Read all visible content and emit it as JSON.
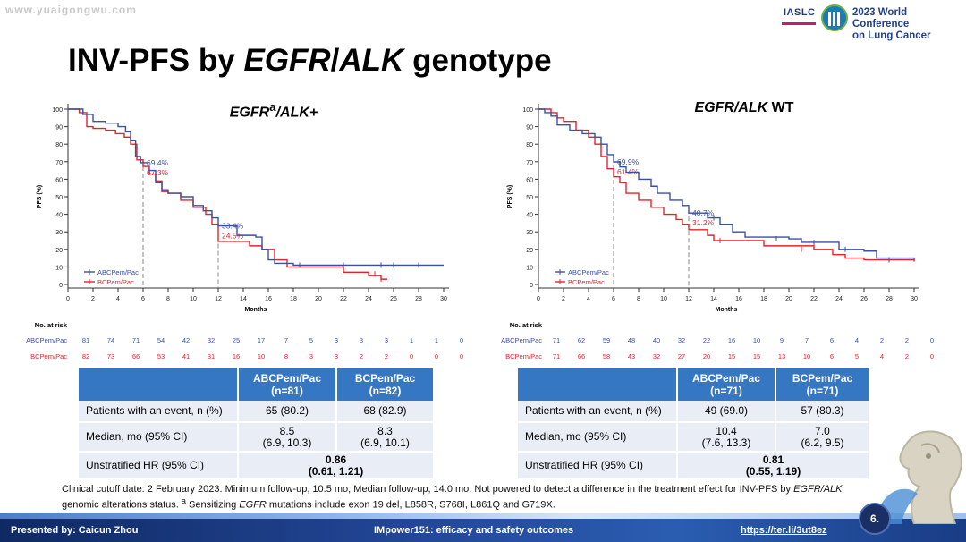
{
  "watermark": "www.yuaigongwu.com",
  "conference": {
    "org": "IASLC",
    "line1": "2023 World Conference",
    "line2": "on Lung Cancer"
  },
  "title": {
    "pre": "INV-PFS by ",
    "it1": "EGFR",
    "slash": "/",
    "it2": "ALK",
    "post": " genotype"
  },
  "colors": {
    "abc": "#3a4fa6",
    "bc": "#e0242c",
    "table_header": "#3677c4",
    "table_row": "#e9edf5"
  },
  "risk_header": "No. at risk",
  "chart_data": [
    {
      "type": "line",
      "subtitle_html": "<i>EGFR</i><sup>a</sup><i>/ALK+</i>",
      "xlabel": "Months",
      "ylabel": "PFS (%)",
      "xlim": [
        0,
        30
      ],
      "ylim": [
        0,
        100
      ],
      "xticks": [
        0,
        2,
        4,
        6,
        8,
        10,
        12,
        14,
        16,
        18,
        20,
        22,
        24,
        26,
        28,
        30
      ],
      "yticks": [
        0,
        10,
        20,
        30,
        40,
        50,
        60,
        70,
        80,
        90,
        100
      ],
      "legend": "bottom-left",
      "series": [
        {
          "name": "ABCPem/Pac",
          "color": "#3a4fa6",
          "points": [
            [
              0,
              100
            ],
            [
              0.8,
              100
            ],
            [
              1.2,
              97
            ],
            [
              2,
              93
            ],
            [
              3,
              92
            ],
            [
              4,
              90
            ],
            [
              4.6,
              87
            ],
            [
              5,
              82
            ],
            [
              5.4,
              73
            ],
            [
              5.8,
              69.4
            ],
            [
              6,
              69.4
            ],
            [
              6.4,
              65
            ],
            [
              7,
              58
            ],
            [
              7.5,
              54
            ],
            [
              8,
              52
            ],
            [
              9,
              50
            ],
            [
              10,
              45
            ],
            [
              10.8,
              42
            ],
            [
              11.5,
              38
            ],
            [
              12,
              33.4
            ],
            [
              13,
              33.4
            ],
            [
              13.5,
              28
            ],
            [
              15,
              27
            ],
            [
              15.5,
              20
            ],
            [
              16,
              14
            ],
            [
              16.5,
              12
            ],
            [
              18,
              11
            ],
            [
              30,
              11
            ]
          ],
          "censor": [
            [
              18.5,
              11
            ],
            [
              22,
              11
            ],
            [
              25,
              11
            ],
            [
              26,
              11
            ],
            [
              28,
              11
            ]
          ]
        },
        {
          "name": "BCPem/Pac",
          "color": "#e0242c",
          "points": [
            [
              0,
              100
            ],
            [
              0.9,
              98
            ],
            [
              1.5,
              90
            ],
            [
              2,
              89
            ],
            [
              3,
              88
            ],
            [
              3.8,
              86
            ],
            [
              4.5,
              84
            ],
            [
              5,
              80
            ],
            [
              5.5,
              71
            ],
            [
              6,
              67.3
            ],
            [
              6.5,
              63
            ],
            [
              7,
              59
            ],
            [
              7.5,
              53
            ],
            [
              8,
              52
            ],
            [
              9,
              48
            ],
            [
              10,
              44
            ],
            [
              11,
              40
            ],
            [
              11.5,
              34
            ],
            [
              12,
              24.5
            ],
            [
              14,
              24.5
            ],
            [
              14.5,
              22
            ],
            [
              15.5,
              20
            ],
            [
              16.5,
              14
            ],
            [
              17.5,
              10
            ],
            [
              20,
              10
            ],
            [
              22,
              7
            ],
            [
              24,
              5
            ],
            [
              25,
              3
            ],
            [
              25.5,
              3
            ]
          ],
          "censor": [
            [
              24.5,
              6
            ],
            [
              25,
              3
            ]
          ]
        }
      ],
      "annotations": [
        {
          "x": 6,
          "abc": "69.4%",
          "bc": "67.3%"
        },
        {
          "x": 12,
          "abc": "33.4%",
          "bc": "24.5%"
        }
      ],
      "risk": {
        "ABCPem/Pac": [
          81,
          74,
          71,
          54,
          42,
          32,
          25,
          17,
          7,
          5,
          3,
          3,
          3,
          1,
          1,
          0
        ],
        "BCPem/Pac": [
          82,
          73,
          66,
          53,
          41,
          31,
          16,
          10,
          8,
          3,
          3,
          2,
          2,
          0,
          0,
          0
        ]
      }
    },
    {
      "type": "line",
      "subtitle_html": "<i>EGFR/ALK</i> WT",
      "xlabel": "Months",
      "ylabel": "PFS (%)",
      "xlim": [
        0,
        30
      ],
      "ylim": [
        0,
        100
      ],
      "xticks": [
        0,
        2,
        4,
        6,
        8,
        10,
        12,
        14,
        16,
        18,
        20,
        22,
        24,
        26,
        28,
        30
      ],
      "yticks": [
        0,
        10,
        20,
        30,
        40,
        50,
        60,
        70,
        80,
        90,
        100
      ],
      "legend": "bottom-left",
      "series": [
        {
          "name": "ABCPem/Pac",
          "color": "#3a4fa6",
          "points": [
            [
              0,
              100
            ],
            [
              0.5,
              98
            ],
            [
              1,
              96
            ],
            [
              1.5,
              91
            ],
            [
              2.5,
              88
            ],
            [
              3.5,
              86
            ],
            [
              4.5,
              84
            ],
            [
              5,
              80
            ],
            [
              5.5,
              74
            ],
            [
              6,
              69.9
            ],
            [
              6.5,
              67
            ],
            [
              7,
              64
            ],
            [
              8,
              60
            ],
            [
              9,
              56
            ],
            [
              9.5,
              52
            ],
            [
              10.5,
              48
            ],
            [
              11.5,
              45
            ],
            [
              12,
              40.7
            ],
            [
              13,
              40.7
            ],
            [
              13.5,
              38
            ],
            [
              14.5,
              34
            ],
            [
              15.5,
              30
            ],
            [
              16.5,
              27
            ],
            [
              20,
              26
            ],
            [
              21,
              24
            ],
            [
              23.5,
              24
            ],
            [
              24,
              20
            ],
            [
              26,
              19
            ],
            [
              27,
              15
            ],
            [
              30,
              14
            ]
          ],
          "censor": [
            [
              14,
              38
            ],
            [
              19,
              26
            ],
            [
              22,
              24
            ],
            [
              24.5,
              20
            ],
            [
              28,
              14
            ]
          ]
        },
        {
          "name": "BCPem/Pac",
          "color": "#e0242c",
          "points": [
            [
              0,
              100
            ],
            [
              1,
              98
            ],
            [
              1.5,
              95
            ],
            [
              2,
              93
            ],
            [
              3,
              88
            ],
            [
              4,
              84
            ],
            [
              4.5,
              80
            ],
            [
              5,
              73
            ],
            [
              5.5,
              66
            ],
            [
              6,
              61.4
            ],
            [
              6.5,
              58
            ],
            [
              7,
              52
            ],
            [
              8,
              48
            ],
            [
              9,
              44
            ],
            [
              10,
              40
            ],
            [
              11,
              37
            ],
            [
              11.5,
              34
            ],
            [
              12,
              31.2
            ],
            [
              13,
              31.2
            ],
            [
              13.5,
              28
            ],
            [
              14,
              25
            ],
            [
              17,
              25
            ],
            [
              18,
              22
            ],
            [
              22,
              20
            ],
            [
              23.5,
              17
            ],
            [
              24.5,
              15
            ],
            [
              26,
              14
            ],
            [
              30,
              13
            ]
          ],
          "censor": [
            [
              14.5,
              25
            ],
            [
              21,
              20
            ],
            [
              28,
              14
            ]
          ]
        }
      ],
      "annotations": [
        {
          "x": 6,
          "abc": "69.9%",
          "bc": "61.4%"
        },
        {
          "x": 12,
          "abc": "40.7%",
          "bc": "31.2%"
        }
      ],
      "risk": {
        "ABCPem/Pac": [
          71,
          62,
          59,
          48,
          40,
          32,
          22,
          16,
          10,
          9,
          7,
          6,
          4,
          2,
          2,
          0
        ],
        "BCPem/Pac": [
          71,
          66,
          58,
          43,
          32,
          27,
          20,
          15,
          15,
          13,
          10,
          6,
          5,
          4,
          2,
          0
        ]
      }
    }
  ],
  "tables": [
    {
      "headers": [
        "",
        "ABCPem/Pac\n(n=81)",
        "BCPem/Pac\n(n=82)"
      ],
      "rows": [
        {
          "label": "Patients with an event, n (%)",
          "abc": "65 (80.2)",
          "bc": "68 (82.9)"
        },
        {
          "label": "Median, mo (95% CI)",
          "abc": "8.5\n(6.9, 10.3)",
          "bc": "8.3\n(6.9, 10.1)"
        }
      ],
      "hr": {
        "label": "Unstratified HR (95% CI)",
        "value": "0.86\n(0.61, 1.21)"
      }
    },
    {
      "headers": [
        "",
        "ABCPem/Pac\n(n=71)",
        "BCPem/Pac\n(n=71)"
      ],
      "rows": [
        {
          "label": "Patients with an event, n (%)",
          "abc": "49 (69.0)",
          "bc": "57 (80.3)"
        },
        {
          "label": "Median, mo (95% CI)",
          "abc": "10.4\n(7.6, 13.3)",
          "bc": "7.0\n(6.2, 9.5)"
        }
      ],
      "hr": {
        "label": "Unstratified HR (95% CI)",
        "value": "0.81\n(0.55, 1.19)"
      }
    }
  ],
  "footnote_html": "Clinical cutoff date: 2 February 2023. Minimum follow-up, 10.5 mo; Median follow-up, 14.0 mo. Not powered to detect a difference in the treatment effect for INV-PFS by <i>EGFR/ALK</i> genomic alterations status. <sup>a</sup> Sensitizing <i>EGFR</i> mutations include exon 19 del, L858R, S768I, L861Q and G719X.",
  "footer": {
    "presenter": "Presented by: Caicun Zhou",
    "center": "IMpower151: efficacy and safety outcomes",
    "link": "https://ter.li/3ut8ez",
    "page": "6."
  }
}
